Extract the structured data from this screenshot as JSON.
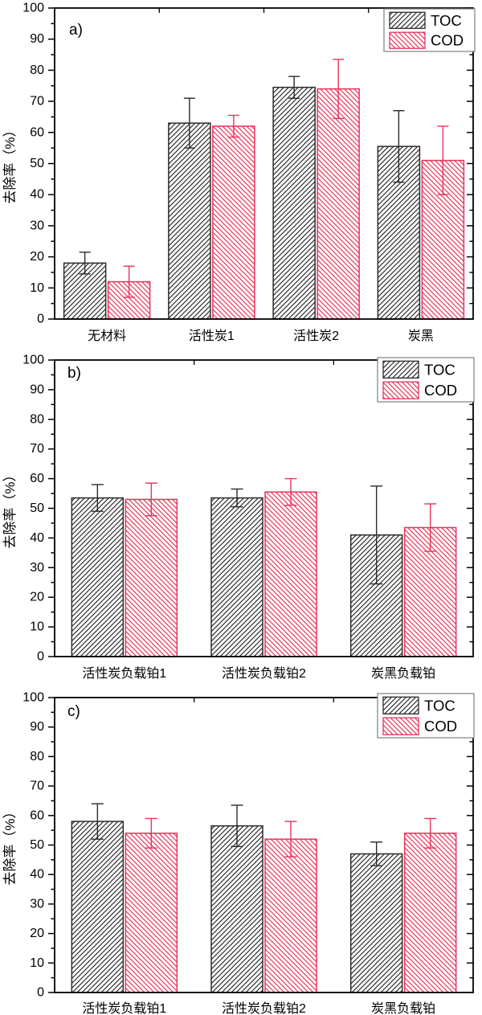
{
  "figure": {
    "background": "#ffffff",
    "colors": {
      "toc": "#2b2b2b",
      "cod": "#e8335c",
      "axis": "#000000",
      "legend_border": "#7f7f7f",
      "legend_background": "#ffffff"
    },
    "y_axis_label": "去除率（%）",
    "legend_labels": [
      "TOC",
      "COD"
    ]
  },
  "chart_data": [
    {
      "type": "bar",
      "panel_label": "a)",
      "title": "",
      "xlabel": "",
      "ylabel": "去除率（%）",
      "ylim": [
        0,
        100
      ],
      "ytick_major": 10,
      "ytick_minor": 5,
      "grid": false,
      "legend_position": "top-right",
      "categories": [
        "无材料",
        "活性炭1",
        "活性炭2",
        "炭黑"
      ],
      "series": [
        {
          "name": "TOC",
          "color": "#2b2b2b",
          "hatch": "/",
          "values": [
            18,
            63,
            74.5,
            55.5
          ],
          "errors": [
            3.5,
            8,
            3.5,
            11.5
          ]
        },
        {
          "name": "COD",
          "color": "#e8335c",
          "hatch": "\\",
          "values": [
            12,
            62,
            74,
            51
          ],
          "errors": [
            5,
            3.5,
            9.5,
            11
          ]
        }
      ]
    },
    {
      "type": "bar",
      "panel_label": "b)",
      "title": "",
      "xlabel": "",
      "ylabel": "去除率（%）",
      "ylim": [
        0,
        100
      ],
      "ytick_major": 10,
      "ytick_minor": 5,
      "grid": false,
      "legend_position": "top-right",
      "categories": [
        "活性炭负载铂1",
        "活性炭负载铂2",
        "炭黑负载铂"
      ],
      "series": [
        {
          "name": "TOC",
          "color": "#2b2b2b",
          "hatch": "/",
          "values": [
            53.5,
            53.5,
            41
          ],
          "errors": [
            4.5,
            3,
            16.5
          ]
        },
        {
          "name": "COD",
          "color": "#e8335c",
          "hatch": "\\",
          "values": [
            53,
            55.5,
            43.5
          ],
          "errors": [
            5.5,
            4.5,
            8
          ]
        }
      ]
    },
    {
      "type": "bar",
      "panel_label": "c)",
      "title": "",
      "xlabel": "",
      "ylabel": "去除率（%）",
      "ylim": [
        0,
        100
      ],
      "ytick_major": 10,
      "ytick_minor": 5,
      "grid": false,
      "legend_position": "top-right",
      "categories": [
        "活性炭负载铂1",
        "活性炭负载铂2",
        "炭黑负载铂"
      ],
      "series": [
        {
          "name": "TOC",
          "color": "#2b2b2b",
          "hatch": "/",
          "values": [
            58,
            56.5,
            47
          ],
          "errors": [
            6,
            7,
            4
          ]
        },
        {
          "name": "COD",
          "color": "#e8335c",
          "hatch": "\\",
          "values": [
            54,
            52,
            54
          ],
          "errors": [
            5,
            6,
            5
          ]
        }
      ]
    }
  ]
}
